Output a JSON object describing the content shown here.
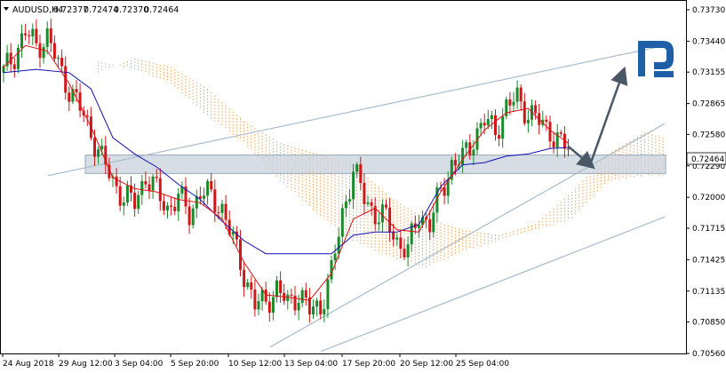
{
  "header": {
    "dropdown_icon": "triangle-down-icon",
    "symbol": "AUDUSD,H4",
    "ohlc": [
      "0.72377",
      "0.72474",
      "0.72370",
      "0.72464"
    ]
  },
  "logo": {
    "icon": "roboforex-r-logo-icon",
    "color": "#1f5fa8"
  },
  "chart_data": {
    "type": "candlestick",
    "symbol": "AUDUSD",
    "timeframe": "H4",
    "ylim": [
      0.7056,
      0.7382
    ],
    "y_ticks": [
      "0.73730",
      "0.73440",
      "0.73155",
      "0.72865",
      "0.72580",
      "0.72290",
      "0.72000",
      "0.71715",
      "0.71425",
      "0.71135",
      "0.70850",
      "0.70560"
    ],
    "x_ticks": [
      "24 Aug 2018",
      "29 Aug 12:00",
      "3 Sep 04:00",
      "5 Sep 20:00",
      "10 Sep 12:00",
      "13 Sep 04:00",
      "17 Sep 20:00",
      "20 Sep 12:00",
      "25 Sep 04:00"
    ],
    "current_price": "0.72464",
    "grid": false,
    "price_path": [
      [
        0,
        0.7315
      ],
      [
        3,
        0.7332
      ],
      [
        6,
        0.7352
      ],
      [
        9,
        0.734
      ],
      [
        12,
        0.7348
      ],
      [
        15,
        0.7322
      ],
      [
        18,
        0.73
      ],
      [
        21,
        0.7282
      ],
      [
        24,
        0.726
      ],
      [
        27,
        0.7235
      ],
      [
        30,
        0.7215
      ],
      [
        33,
        0.72
      ],
      [
        36,
        0.7195
      ],
      [
        39,
        0.722
      ],
      [
        42,
        0.7205
      ],
      [
        45,
        0.719
      ],
      [
        48,
        0.72
      ],
      [
        51,
        0.7185
      ],
      [
        54,
        0.7205
      ],
      [
        57,
        0.72
      ],
      [
        60,
        0.719
      ],
      [
        63,
        0.716
      ],
      [
        66,
        0.713
      ],
      [
        69,
        0.71
      ],
      [
        72,
        0.7105
      ],
      [
        75,
        0.7115
      ],
      [
        78,
        0.7102
      ],
      [
        81,
        0.7112
      ],
      [
        84,
        0.7095
      ],
      [
        87,
        0.71
      ],
      [
        90,
        0.713
      ],
      [
        93,
        0.7185
      ],
      [
        96,
        0.7225
      ],
      [
        99,
        0.72
      ],
      [
        102,
        0.7185
      ],
      [
        105,
        0.718
      ],
      [
        108,
        0.716
      ],
      [
        111,
        0.715
      ],
      [
        114,
        0.7185
      ],
      [
        117,
        0.7175
      ],
      [
        120,
        0.7205
      ],
      [
        123,
        0.723
      ],
      [
        126,
        0.7235
      ],
      [
        129,
        0.7255
      ],
      [
        132,
        0.727
      ],
      [
        135,
        0.7262
      ],
      [
        138,
        0.7282
      ],
      [
        141,
        0.7292
      ],
      [
        144,
        0.7278
      ],
      [
        147,
        0.727
      ],
      [
        150,
        0.7262
      ],
      [
        153,
        0.7248
      ],
      [
        155,
        0.7246
      ]
    ],
    "kijun_sen_blue": [
      [
        0,
        0.7315
      ],
      [
        9,
        0.7318
      ],
      [
        18,
        0.7315
      ],
      [
        24,
        0.73
      ],
      [
        30,
        0.7255
      ],
      [
        36,
        0.724
      ],
      [
        42,
        0.7228
      ],
      [
        48,
        0.7212
      ],
      [
        54,
        0.7198
      ],
      [
        60,
        0.7178
      ],
      [
        66,
        0.716
      ],
      [
        72,
        0.7148
      ],
      [
        78,
        0.7148
      ],
      [
        84,
        0.7148
      ],
      [
        90,
        0.7148
      ],
      [
        96,
        0.7165
      ],
      [
        102,
        0.7168
      ],
      [
        108,
        0.7168
      ],
      [
        114,
        0.7175
      ],
      [
        120,
        0.721
      ],
      [
        126,
        0.723
      ],
      [
        132,
        0.7232
      ],
      [
        138,
        0.7238
      ],
      [
        144,
        0.724
      ],
      [
        150,
        0.7245
      ],
      [
        155,
        0.7246
      ]
    ],
    "tenkan_sen_red": [
      [
        0,
        0.732
      ],
      [
        6,
        0.734
      ],
      [
        12,
        0.7335
      ],
      [
        18,
        0.7305
      ],
      [
        24,
        0.7265
      ],
      [
        30,
        0.7218
      ],
      [
        36,
        0.7208
      ],
      [
        42,
        0.7205
      ],
      [
        48,
        0.7198
      ],
      [
        54,
        0.7195
      ],
      [
        60,
        0.718
      ],
      [
        66,
        0.714
      ],
      [
        72,
        0.711
      ],
      [
        78,
        0.7108
      ],
      [
        84,
        0.7105
      ],
      [
        90,
        0.713
      ],
      [
        96,
        0.718
      ],
      [
        102,
        0.719
      ],
      [
        108,
        0.717
      ],
      [
        114,
        0.7168
      ],
      [
        120,
        0.7205
      ],
      [
        126,
        0.7235
      ],
      [
        132,
        0.7262
      ],
      [
        138,
        0.7278
      ],
      [
        144,
        0.7282
      ],
      [
        150,
        0.7262
      ],
      [
        155,
        0.725
      ]
    ],
    "cloud_span_a": [
      [
        26,
        0.7315
      ],
      [
        36,
        0.7328
      ],
      [
        46,
        0.732
      ],
      [
        56,
        0.73
      ],
      [
        66,
        0.727
      ],
      [
        76,
        0.725
      ],
      [
        86,
        0.724
      ],
      [
        96,
        0.723
      ],
      [
        106,
        0.72
      ],
      [
        116,
        0.718
      ],
      [
        126,
        0.717
      ],
      [
        136,
        0.7165
      ],
      [
        146,
        0.7175
      ],
      [
        156,
        0.7205
      ],
      [
        166,
        0.724
      ],
      [
        176,
        0.726
      ],
      [
        181,
        0.7255
      ]
    ],
    "cloud_span_b": [
      [
        26,
        0.7325
      ],
      [
        36,
        0.7318
      ],
      [
        46,
        0.7305
      ],
      [
        56,
        0.7275
      ],
      [
        66,
        0.725
      ],
      [
        76,
        0.7215
      ],
      [
        86,
        0.7185
      ],
      [
        96,
        0.716
      ],
      [
        106,
        0.7145
      ],
      [
        116,
        0.7135
      ],
      [
        126,
        0.715
      ],
      [
        136,
        0.716
      ],
      [
        146,
        0.717
      ],
      [
        156,
        0.718
      ],
      [
        166,
        0.7215
      ],
      [
        176,
        0.722
      ],
      [
        181,
        0.722
      ]
    ],
    "channel_lines": [
      {
        "from": [
          0,
          0.722
        ],
        "to": [
          181,
          0.734
        ]
      },
      {
        "from": [
          75,
          0.7058
        ],
        "to": [
          181,
          0.7182
        ]
      },
      {
        "from": [
          61,
          0.7062
        ],
        "to": [
          181,
          0.7268
        ]
      }
    ],
    "support_zone": {
      "x": [
        0,
        181
      ],
      "y": [
        0.7222,
        0.7239
      ]
    },
    "forecast_arrows": [
      {
        "from": [
          155,
          0.7247
        ],
        "to": [
          161,
          0.723
        ]
      },
      {
        "from": [
          161,
          0.723
        ],
        "to": [
          170,
          0.7315
        ]
      }
    ]
  }
}
